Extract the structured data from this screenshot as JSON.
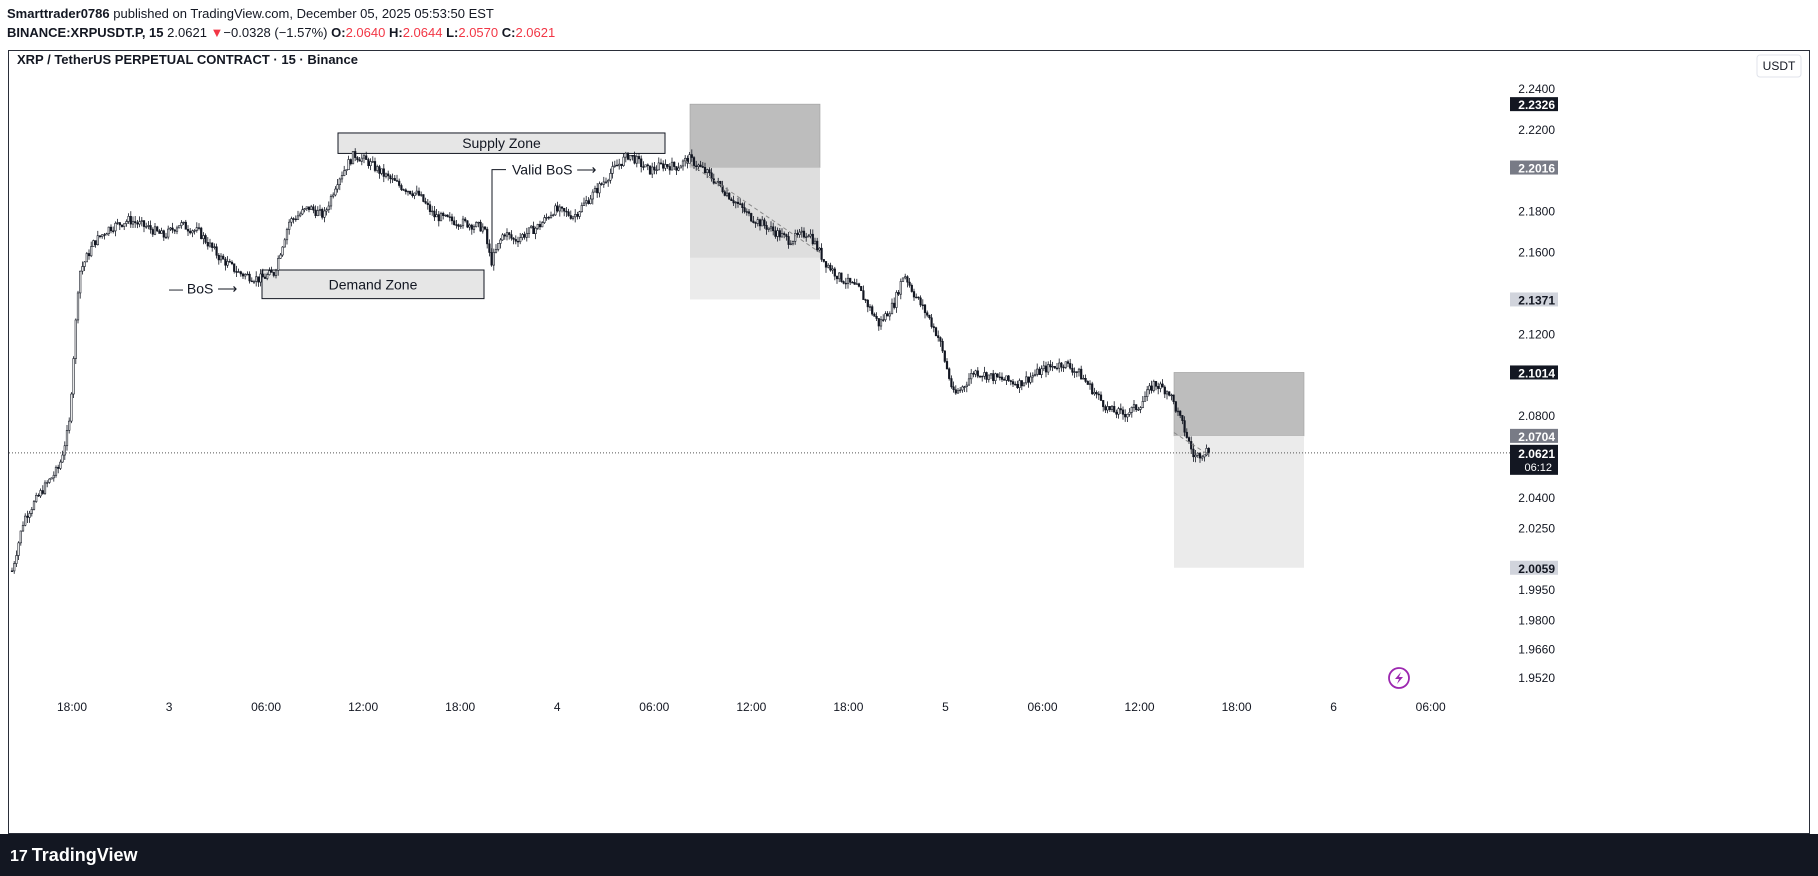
{
  "header": {
    "author": "Smarttrader0786",
    "published": "published on TradingView.com, December 05, 2025 05:53:50 EST",
    "symbol": "BINANCE:XRPUSDT.P, 15",
    "last": "2.0621",
    "arrow": "▼",
    "change": "−0.0328 (−1.57%)",
    "ohlc": [
      {
        "k": "O:",
        "v": "2.0640"
      },
      {
        "k": "H:",
        "v": "2.0644"
      },
      {
        "k": "L:",
        "v": "2.0570"
      },
      {
        "k": "C:",
        "v": "2.0621"
      }
    ]
  },
  "legend_title": "XRP / TetherUS PERPETUAL CONTRACT · 15 · Binance",
  "currency": "USDT",
  "footer": {
    "logo_mark": "17",
    "logo_text": "TradingView"
  },
  "colors": {
    "candle": "#131722",
    "zone": "#e6e6e6",
    "stop": "#bdbdbd",
    "target": "#ebebeb",
    "current": "#131722"
  },
  "chart_data": {
    "type": "candlestick",
    "price_axis": {
      "ticks": [
        "2.2400",
        "2.2200",
        "2.1800",
        "2.1600",
        "2.1200",
        "2.0800",
        "2.0400",
        "2.0250",
        "1.9950",
        "1.9800",
        "1.9660",
        "1.9520"
      ],
      "highlight_labels": [
        {
          "value": "2.2326",
          "style": "dark"
        },
        {
          "value": "2.2016",
          "style": "grey"
        },
        {
          "value": "2.1371",
          "style": "light"
        },
        {
          "value": "2.1014",
          "style": "dark"
        },
        {
          "value": "2.0704",
          "style": "grey"
        },
        {
          "value": "2.0059",
          "style": "light"
        }
      ],
      "current_price": "2.0621",
      "countdown": "06:12"
    },
    "time_axis": [
      "18:00",
      "3",
      "06:00",
      "12:00",
      "18:00",
      "4",
      "06:00",
      "12:00",
      "18:00",
      "5",
      "06:00",
      "12:00",
      "18:00",
      "6",
      "06:00"
    ],
    "zones": [
      {
        "label": "Supply Zone",
        "top": 2.2185,
        "bottom": 2.2085
      },
      {
        "label": "Demand Zone",
        "top": 2.1515,
        "bottom": 2.1375
      }
    ],
    "annotations": [
      {
        "text": "— BoS ⟶",
        "price": 2.1425
      },
      {
        "text": "Valid BoS ⟶",
        "price": 2.2006
      }
    ],
    "positions": [
      {
        "type": "short",
        "stop": 2.2326,
        "entry": 2.2016,
        "target": 2.1371
      },
      {
        "type": "short",
        "stop": 2.1014,
        "entry": 2.0704,
        "target": 2.0059
      }
    ],
    "series_summary": {
      "start": 1.9972,
      "high": 2.2132,
      "low": 1.9972,
      "last": 2.0621
    }
  }
}
